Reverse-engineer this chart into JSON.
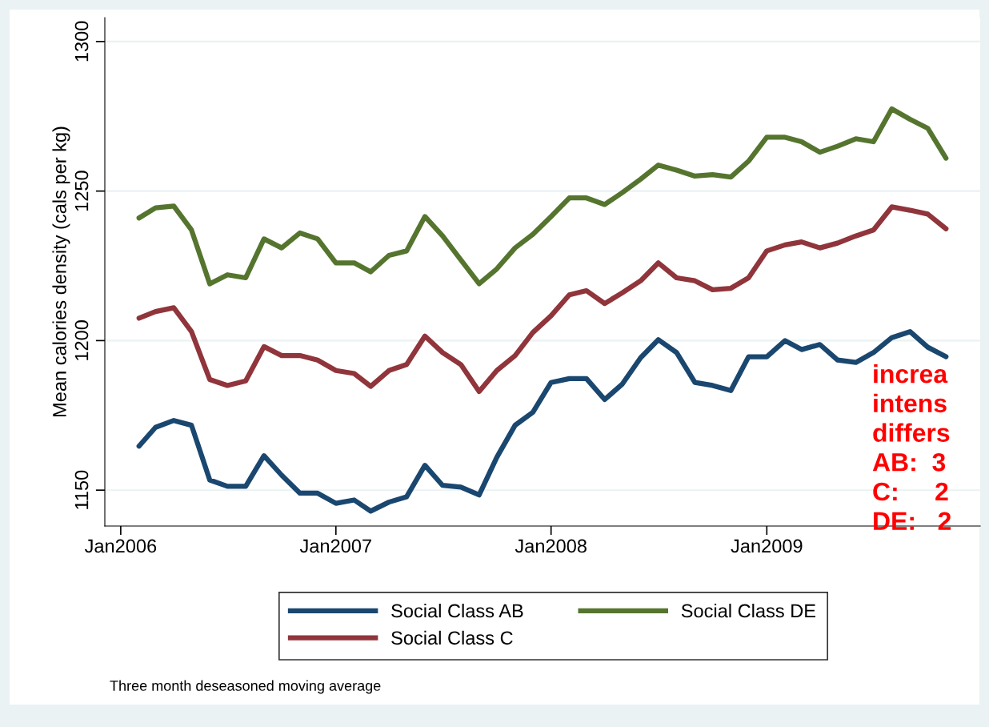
{
  "chart_data": {
    "type": "line",
    "ylabel": "Mean calories density (cals per kg)",
    "x": [
      "2006-02",
      "2006-03",
      "2006-04",
      "2006-05",
      "2006-06",
      "2006-07",
      "2006-08",
      "2006-09",
      "2006-10",
      "2006-11",
      "2006-12",
      "2007-01",
      "2007-02",
      "2007-03",
      "2007-04",
      "2007-05",
      "2007-06",
      "2007-07",
      "2007-08",
      "2007-09",
      "2007-10",
      "2007-11",
      "2007-12",
      "2008-01",
      "2008-02",
      "2008-03",
      "2008-04",
      "2008-05",
      "2008-06",
      "2008-07",
      "2008-08",
      "2008-09",
      "2008-10",
      "2008-11",
      "2008-12",
      "2009-01",
      "2009-02",
      "2009-03",
      "2009-04",
      "2009-05",
      "2009-06",
      "2009-07",
      "2009-08",
      "2009-09",
      "2009-10",
      "2009-11"
    ],
    "series": [
      {
        "name": "Social Class AB",
        "color": "#1a476f",
        "values": [
          1164.7,
          1171,
          1173.3,
          1171.7,
          1153.4,
          1151.3,
          1151.3,
          1161.5,
          1155,
          1149,
          1149,
          1145.6,
          1146.7,
          1143,
          1146,
          1147.8,
          1158.3,
          1151.6,
          1151,
          1148.4,
          1161,
          1171.7,
          1176,
          1186,
          1187.3,
          1187.3,
          1180.3,
          1185.5,
          1194.3,
          1200.3,
          1196,
          1186,
          1185,
          1183.3,
          1194.6,
          1194.6,
          1200,
          1197,
          1198.7,
          1193.5,
          1192.7,
          1196,
          1201,
          1203,
          1197.8,
          1194.6
        ]
      },
      {
        "name": "Social Class C",
        "color": "#90353b",
        "values": [
          1207.5,
          1209.7,
          1211,
          1203,
          1187,
          1185,
          1186.5,
          1198,
          1195,
          1195,
          1193.5,
          1190,
          1189,
          1184.7,
          1190,
          1192,
          1201.5,
          1196,
          1192,
          1183,
          1190,
          1195,
          1202.7,
          1208.3,
          1215.3,
          1216.7,
          1212.4,
          1216,
          1220,
          1226,
          1221,
          1220,
          1217,
          1217.5,
          1221,
          1230,
          1232,
          1233,
          1231,
          1232.6,
          1235,
          1237,
          1244.7,
          1243.6,
          1242.3,
          1237.4
        ]
      },
      {
        "name": "Social Class DE",
        "color": "#55752f",
        "values": [
          1241,
          1244.4,
          1245,
          1237,
          1219,
          1222,
          1221,
          1234,
          1231,
          1236,
          1234,
          1226,
          1226,
          1223,
          1228.5,
          1230,
          1241.5,
          1235,
          1227,
          1219,
          1224,
          1231,
          1235.5,
          1241.5,
          1247.7,
          1247.7,
          1245.5,
          1249.5,
          1254,
          1258.7,
          1257,
          1255,
          1255.5,
          1254.7,
          1260,
          1268,
          1268,
          1266.5,
          1263,
          1265,
          1267.5,
          1266.5,
          1277.5,
          1274,
          1271,
          1261
        ]
      }
    ],
    "xlim": [
      "2005-12-05",
      "2009-12-29"
    ],
    "xticks": [
      {
        "value": "2006-01",
        "label": "Jan2006"
      },
      {
        "value": "2007-01",
        "label": "Jan2007"
      },
      {
        "value": "2008-01",
        "label": "Jan2008"
      },
      {
        "value": "2009-01",
        "label": "Jan2009"
      }
    ],
    "ylim": [
      1138,
      1308
    ],
    "yticks": [
      1150,
      1200,
      1250,
      1300
    ],
    "grid": "y",
    "legend": "bottom",
    "marker": "none",
    "line_style": "solid",
    "annotations": [
      "Three month deseasoned moving average",
      "increa\nintens\ndiffers\nAB:  3\nC:     2\nDE:   2"
    ]
  }
}
